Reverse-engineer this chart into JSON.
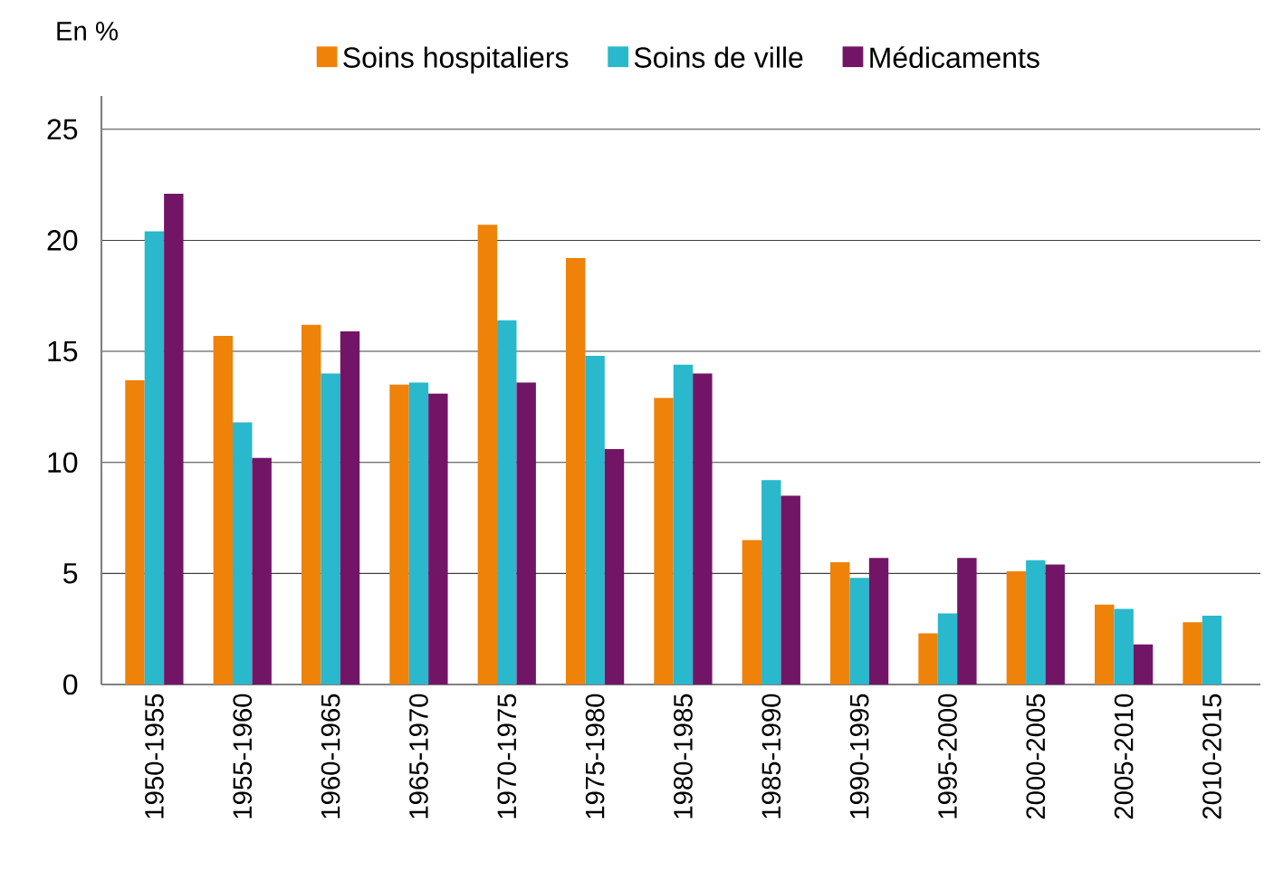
{
  "chart_data": {
    "type": "bar",
    "ylabel": "En %",
    "categories": [
      "1950-1955",
      "1955-1960",
      "1960-1965",
      "1965-1970",
      "1970-1975",
      "1975-1980",
      "1980-1985",
      "1985-1990",
      "1990-1995",
      "1995-2000",
      "2000-2005",
      "2005-2010",
      "2010-2015"
    ],
    "series": [
      {
        "name": "Soins hospitaliers",
        "color": "#ef8208",
        "values": [
          13.7,
          15.7,
          16.2,
          13.5,
          20.7,
          19.2,
          12.9,
          6.5,
          5.5,
          2.3,
          5.1,
          3.6,
          2.8
        ]
      },
      {
        "name": "Soins de ville",
        "color": "#29b8cc",
        "values": [
          20.4,
          11.8,
          14.0,
          13.6,
          16.4,
          14.8,
          14.4,
          9.2,
          4.8,
          3.2,
          5.6,
          3.4,
          3.1
        ]
      },
      {
        "name": "Médicaments",
        "color": "#731566",
        "values": [
          22.1,
          10.2,
          15.9,
          13.1,
          13.6,
          10.6,
          14.0,
          8.5,
          5.7,
          5.7,
          5.4,
          1.8,
          null
        ]
      }
    ],
    "ylim": [
      0,
      25
    ],
    "yticks": [
      0,
      5,
      10,
      15,
      20,
      25
    ],
    "grid": "y",
    "legend": "top"
  }
}
